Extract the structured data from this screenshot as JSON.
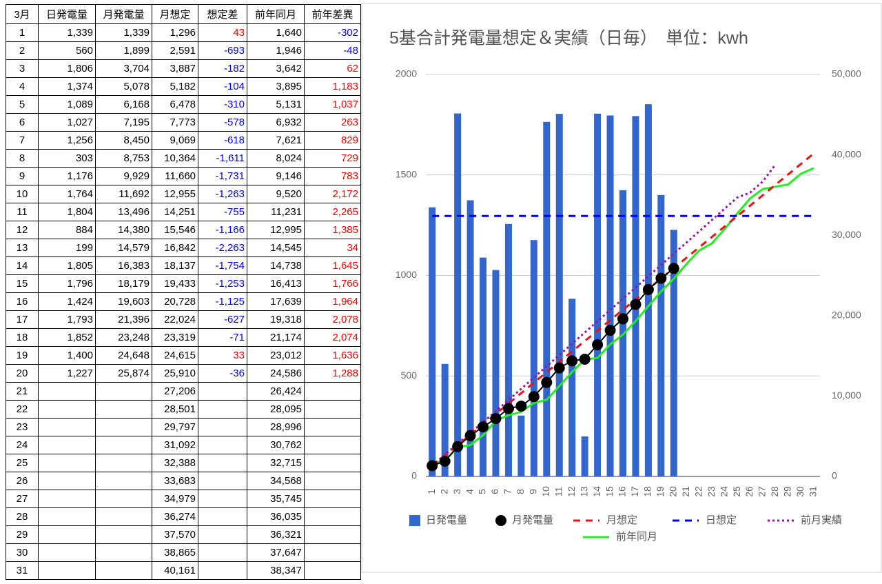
{
  "table": {
    "header": [
      "3月",
      "日発電量",
      "月発電量",
      "月想定",
      "想定差",
      "前年同月",
      "前年差異"
    ],
    "colored_columns": [
      4,
      6
    ],
    "positive_color": "#ff0000",
    "negative_color": "#0000ff",
    "rows": [
      [
        "1",
        "1,339",
        "1,339",
        "1,296",
        "43",
        "1,640",
        "-302"
      ],
      [
        "2",
        "560",
        "1,899",
        "2,591",
        "-693",
        "1,946",
        "-48"
      ],
      [
        "3",
        "1,806",
        "3,704",
        "3,887",
        "-182",
        "3,642",
        "62"
      ],
      [
        "4",
        "1,374",
        "5,078",
        "5,182",
        "-104",
        "3,895",
        "1,183"
      ],
      [
        "5",
        "1,089",
        "6,168",
        "6,478",
        "-310",
        "5,131",
        "1,037"
      ],
      [
        "6",
        "1,027",
        "7,195",
        "7,773",
        "-578",
        "6,932",
        "263"
      ],
      [
        "7",
        "1,256",
        "8,450",
        "9,069",
        "-618",
        "7,621",
        "829"
      ],
      [
        "8",
        "303",
        "8,753",
        "10,364",
        "-1,611",
        "8,024",
        "729"
      ],
      [
        "9",
        "1,176",
        "9,929",
        "11,660",
        "-1,731",
        "9,146",
        "783"
      ],
      [
        "10",
        "1,764",
        "11,692",
        "12,955",
        "-1,263",
        "9,520",
        "2,172"
      ],
      [
        "11",
        "1,804",
        "13,496",
        "14,251",
        "-755",
        "11,231",
        "2,265"
      ],
      [
        "12",
        "884",
        "14,380",
        "15,546",
        "-1,166",
        "12,995",
        "1,385"
      ],
      [
        "13",
        "199",
        "14,579",
        "16,842",
        "-2,263",
        "14,545",
        "34"
      ],
      [
        "14",
        "1,805",
        "16,383",
        "18,137",
        "-1,754",
        "14,738",
        "1,645"
      ],
      [
        "15",
        "1,796",
        "18,179",
        "19,433",
        "-1,253",
        "16,413",
        "1,766"
      ],
      [
        "16",
        "1,424",
        "19,603",
        "20,728",
        "-1,125",
        "17,639",
        "1,964"
      ],
      [
        "17",
        "1,793",
        "21,396",
        "22,024",
        "-627",
        "19,318",
        "2,078"
      ],
      [
        "18",
        "1,852",
        "23,248",
        "23,319",
        "-71",
        "21,174",
        "2,074"
      ],
      [
        "19",
        "1,400",
        "24,648",
        "24,615",
        "33",
        "23,012",
        "1,636"
      ],
      [
        "20",
        "1,227",
        "25,874",
        "25,910",
        "-36",
        "24,586",
        "1,288"
      ],
      [
        "21",
        null,
        null,
        "27,206",
        null,
        "26,424",
        null
      ],
      [
        "22",
        null,
        null,
        "28,501",
        null,
        "28,095",
        null
      ],
      [
        "23",
        null,
        null,
        "29,797",
        null,
        "28,996",
        null
      ],
      [
        "24",
        null,
        null,
        "31,092",
        null,
        "30,762",
        null
      ],
      [
        "25",
        null,
        null,
        "32,388",
        null,
        "32,715",
        null
      ],
      [
        "26",
        null,
        null,
        "33,683",
        null,
        "34,568",
        null
      ],
      [
        "27",
        null,
        null,
        "34,979",
        null,
        "35,745",
        null
      ],
      [
        "28",
        null,
        null,
        "36,274",
        null,
        "36,035",
        null
      ],
      [
        "29",
        null,
        null,
        "37,570",
        null,
        "36,321",
        null
      ],
      [
        "30",
        null,
        null,
        "38,865",
        null,
        "37,647",
        null
      ],
      [
        "31",
        null,
        null,
        "40,161",
        null,
        "38,347",
        null
      ]
    ]
  },
  "chart_data": {
    "type": "combo",
    "title": "5基合計発電量想定＆実績（日毎）　単位：kwh",
    "categories": [
      "1",
      "2",
      "3",
      "4",
      "5",
      "6",
      "7",
      "8",
      "9",
      "10",
      "11",
      "12",
      "13",
      "14",
      "15",
      "16",
      "17",
      "18",
      "19",
      "20",
      "21",
      "22",
      "23",
      "24",
      "25",
      "26",
      "27",
      "28",
      "29",
      "30",
      "31"
    ],
    "ylim": [
      0,
      2000
    ],
    "yticks": [
      0,
      500,
      1000,
      1500,
      2000
    ],
    "y2lim": [
      0,
      50000
    ],
    "y2ticks": [
      0,
      {
        "value": 10000,
        "label": "10,000"
      },
      {
        "value": 20000,
        "label": "20,000"
      },
      {
        "value": 30000,
        "label": "30,000"
      },
      {
        "value": 40000,
        "label": "40,000"
      },
      {
        "value": 50000,
        "label": "50,000"
      }
    ],
    "grid": true,
    "legend": "bottom",
    "series": [
      {
        "name": "日発電量",
        "kind": "bar",
        "color": "#3366cc",
        "values": [
          1339,
          560,
          1806,
          1374,
          1089,
          1027,
          1256,
          303,
          1176,
          1764,
          1804,
          884,
          199,
          1805,
          1796,
          1424,
          1793,
          1852,
          1400,
          1227,
          null,
          null,
          null,
          null,
          null,
          null,
          null,
          null,
          null,
          null,
          null
        ]
      },
      {
        "name": "月発電量",
        "kind": "dots",
        "color": "#000000",
        "axis": "y2",
        "values": [
          1339,
          1899,
          3704,
          5078,
          6168,
          7195,
          8450,
          8753,
          9929,
          11692,
          13496,
          14380,
          14579,
          16383,
          18179,
          19603,
          21396,
          23248,
          24648,
          25874,
          null,
          null,
          null,
          null,
          null,
          null,
          null,
          null,
          null,
          null,
          null
        ]
      },
      {
        "name": "月想定",
        "kind": "dash",
        "color": "#ee1111",
        "axis": "y2",
        "values": [
          1296,
          2591,
          3887,
          5182,
          6478,
          7773,
          9069,
          10364,
          11660,
          12955,
          14251,
          15546,
          16842,
          18137,
          19433,
          20728,
          22024,
          23319,
          24615,
          25910,
          27206,
          28501,
          29797,
          31092,
          32388,
          33683,
          34979,
          36274,
          37570,
          38865,
          40161
        ]
      },
      {
        "name": "日想定",
        "kind": "dash",
        "color": "#0000ee",
        "values": [
          1296,
          1296,
          1296,
          1296,
          1296,
          1296,
          1296,
          1296,
          1296,
          1296,
          1296,
          1296,
          1296,
          1296,
          1296,
          1296,
          1296,
          1296,
          1296,
          1296,
          1296,
          1296,
          1296,
          1296,
          1296,
          1296,
          1296,
          1296,
          1296,
          1296,
          1296
        ]
      },
      {
        "name": "前月実績",
        "kind": "dot",
        "color": "#9911aa",
        "axis": "y2",
        "values": [
          1350,
          2700,
          4050,
          5400,
          6750,
          8100,
          9500,
          10900,
          12300,
          13700,
          15100,
          16500,
          17900,
          19300,
          20700,
          22100,
          23500,
          24900,
          26300,
          27700,
          29100,
          30500,
          31900,
          33300,
          34700,
          35300,
          36700,
          38800,
          null,
          null,
          null
        ]
      },
      {
        "name": "前年同月",
        "kind": "line",
        "color": "#22ee22",
        "axis": "y2",
        "values": [
          1640,
          1946,
          3642,
          3895,
          5131,
          6932,
          7621,
          8024,
          9146,
          9520,
          11231,
          12995,
          14545,
          14738,
          16413,
          17639,
          19318,
          21174,
          23012,
          24586,
          26424,
          28095,
          28996,
          30762,
          32715,
          34568,
          35745,
          36035,
          36321,
          37647,
          38347
        ]
      }
    ]
  }
}
